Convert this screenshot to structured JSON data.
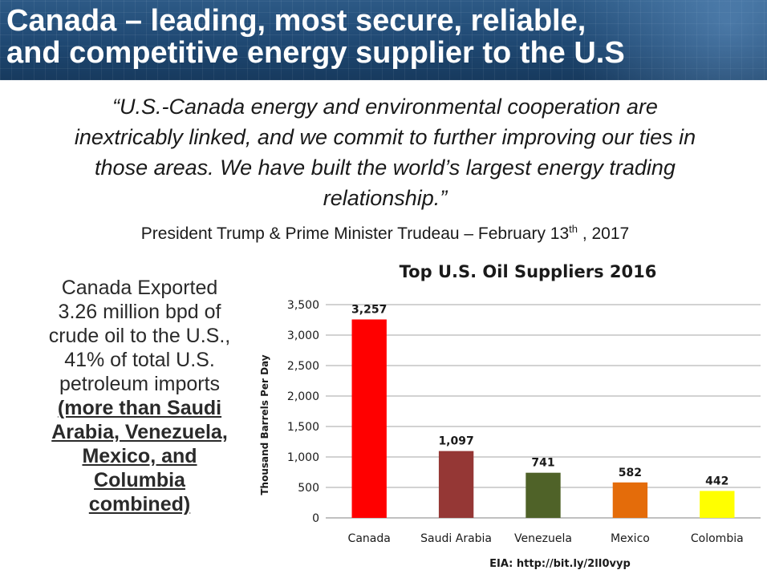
{
  "header": {
    "title_line1": "Canada – leading, most secure, reliable,",
    "title_line2": "and competitive energy supplier to the U.S"
  },
  "quote": {
    "line1": "“U.S.-Canada energy and environmental cooperation are",
    "line2": "inextricably linked, and we commit to further improving our ties in",
    "line3": "those areas.  We have built the world’s largest energy trading",
    "line4": "relationship.”"
  },
  "attribution": {
    "text": "President Trump & Prime Minister Trudeau – February 13",
    "superscript": "th",
    "suffix": " , 2017"
  },
  "side_text": {
    "line1": "Canada Exported",
    "line2": "3.26 million bpd of",
    "line3": "crude oil to the U.S.,",
    "line4": "41% of total U.S.",
    "line5": "petroleum imports",
    "emph1": "(more than Saudi",
    "emph2": "Arabia, Venezuela,",
    "emph3": "Mexico, and",
    "emph4": "Columbia",
    "emph5": "combined)"
  },
  "colors": {
    "header_bg": "#1f4872",
    "title_text": "#ffffff"
  },
  "chart_data": {
    "type": "bar",
    "title": "Top U.S. Oil Suppliers 2016",
    "ylabel": "Thousand Barrels Per Day",
    "xlabel": "",
    "categories": [
      "Canada",
      "Saudi Arabia",
      "Venezuela",
      "Mexico",
      "Colombia"
    ],
    "values": [
      3257,
      1097,
      741,
      582,
      442
    ],
    "data_labels": [
      "3,257",
      "1,097",
      "741",
      "582",
      "442"
    ],
    "colors": [
      "#ff0000",
      "#953735",
      "#4f6228",
      "#e46c0a",
      "#ffff00"
    ],
    "ylim": [
      0,
      3500
    ],
    "yticks": [
      0,
      500,
      1000,
      1500,
      2000,
      2500,
      3000,
      3500
    ],
    "ytick_labels": [
      "0",
      "500",
      "1,000",
      "1,500",
      "2,000",
      "2,500",
      "3,000",
      "3,500"
    ],
    "grid": true,
    "source": "EIA: http://bit.ly/2lI0vyp"
  }
}
